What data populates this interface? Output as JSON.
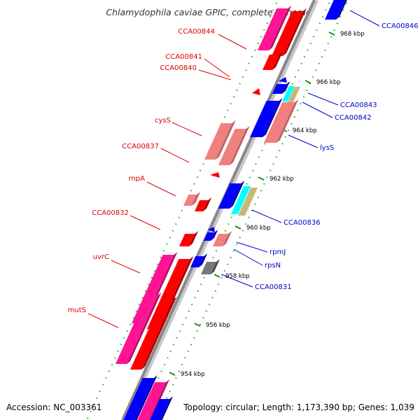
{
  "title": "Chlamydophila caviae GPIC, complete genome",
  "accession": "Accession: NC_003361",
  "topology": "Topology: circular; Length: 1,173,390 bp; Genes: 1,039",
  "colors": {
    "forward": "#ff0000",
    "forward_light": "#f08080",
    "forward_pink": "#ff1493",
    "reverse": "#0000ff",
    "reverse_cyan": "#00ffff",
    "reverse_olive": "#c8b878",
    "grey": "#777777",
    "label_left": "#dd0000",
    "label_right": "#0000cc",
    "ruler_dots": "#228822"
  },
  "ruler": [
    {
      "label": "954 kbp"
    },
    {
      "label": "956 kbp"
    },
    {
      "label": "958 kbp"
    },
    {
      "label": "960 kbp"
    },
    {
      "label": "962 kbp"
    },
    {
      "label": "964 kbp"
    },
    {
      "label": "966 kbp"
    },
    {
      "label": "968 kbp"
    }
  ],
  "left_labels": [
    {
      "name": "CCA00844"
    },
    {
      "name": "CCA00841"
    },
    {
      "name": "CCA00840"
    },
    {
      "name": "cysS"
    },
    {
      "name": "CCA00837"
    },
    {
      "name": "rnpA"
    },
    {
      "name": "CCA00832"
    },
    {
      "name": "uvrC"
    },
    {
      "name": "mutS"
    }
  ],
  "right_labels": [
    {
      "name": "CCA00846"
    },
    {
      "name": "CCA00843"
    },
    {
      "name": "CCA00842"
    },
    {
      "name": "lysS"
    },
    {
      "name": "CCA00836"
    },
    {
      "name": "rpmJ"
    },
    {
      "name": "rpsN"
    },
    {
      "name": "CCA00831"
    }
  ]
}
